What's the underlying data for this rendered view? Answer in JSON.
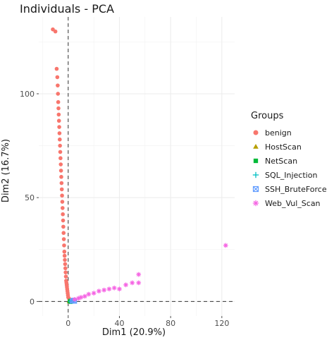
{
  "chart_data": {
    "type": "scatter",
    "title": "Individuals - PCA",
    "xlabel": "Dim1 (20.9%)",
    "ylabel": "Dim2 (16.7%)",
    "xlim": [
      -23,
      130
    ],
    "ylim": [
      -7,
      137
    ],
    "x_ticks": [
      0,
      40,
      80,
      120
    ],
    "y_ticks": [
      0,
      50,
      100
    ],
    "x_tick_labels": [
      "0",
      "40",
      "80",
      "120"
    ],
    "y_tick_labels": [
      "0",
      "50",
      "100"
    ],
    "grid": true,
    "reference_lines": {
      "x": 0,
      "y": 0,
      "style": "dashed"
    },
    "legend_title": "Groups",
    "legend_position": "right",
    "series": [
      {
        "name": "benign",
        "shape": "circle",
        "color": "#F8766D",
        "x": [
          -10,
          -9,
          -8.5,
          -8.2,
          -8,
          -7.8,
          -7.6,
          -7.4,
          -7.2,
          -7,
          -6.8,
          -6.6,
          -6.4,
          -6.2,
          -6,
          -5.8,
          -5.6,
          -5.4,
          -5.2,
          -5,
          -4.8,
          -4.6,
          -4.4,
          -4.2,
          -4,
          -3.8,
          -3.6,
          -3.4,
          -3.2,
          -3,
          -2.8,
          -2.6,
          -2.4,
          -2.2,
          -2,
          -1.8,
          -1.6,
          -1.4,
          -1.2,
          -1,
          -0.8,
          -0.6,
          -0.4,
          -0.2,
          0,
          0.5,
          1,
          1.5,
          2,
          3,
          -12
        ],
        "y": [
          130,
          112,
          108,
          104,
          100,
          96,
          93,
          90,
          87,
          84,
          81,
          78,
          75,
          72,
          69,
          66,
          63,
          60,
          57,
          54,
          51,
          48,
          45,
          42,
          39,
          36,
          33,
          30,
          27,
          24,
          22,
          20,
          18,
          16,
          14,
          12,
          10,
          9,
          8,
          7,
          6,
          5,
          4,
          3,
          2,
          1.5,
          1,
          0.8,
          0.5,
          0.3,
          131
        ]
      },
      {
        "name": "HostScan",
        "shape": "triangle",
        "color": "#B79F00",
        "x": [
          0.5,
          1,
          1.5
        ],
        "y": [
          0,
          0.3,
          -0.2
        ]
      },
      {
        "name": "NetScan",
        "shape": "square",
        "color": "#00BA38",
        "x": [
          1,
          1.5,
          2,
          2.5,
          3
        ],
        "y": [
          0,
          0.5,
          -0.3,
          0.2,
          0.4
        ]
      },
      {
        "name": "SQL_Injection",
        "shape": "plus",
        "color": "#00BFC4",
        "x": [
          2,
          3,
          4
        ],
        "y": [
          0,
          0.5,
          0.2
        ]
      },
      {
        "name": "SSH_BruteForce",
        "shape": "boxed-x",
        "color": "#619CFF",
        "x": [
          3,
          4,
          5
        ],
        "y": [
          0.2,
          0.6,
          0.1
        ]
      },
      {
        "name": "Web_Vul_Scan",
        "shape": "asterisk",
        "color": "#F564E3",
        "x": [
          5,
          8,
          10,
          13,
          16,
          20,
          24,
          28,
          32,
          36,
          40,
          45,
          50,
          55,
          55,
          123
        ],
        "y": [
          1,
          1.5,
          2,
          2.5,
          3.5,
          4,
          5,
          5.5,
          6,
          6.5,
          6,
          8,
          9,
          9,
          13,
          27
        ]
      }
    ]
  }
}
